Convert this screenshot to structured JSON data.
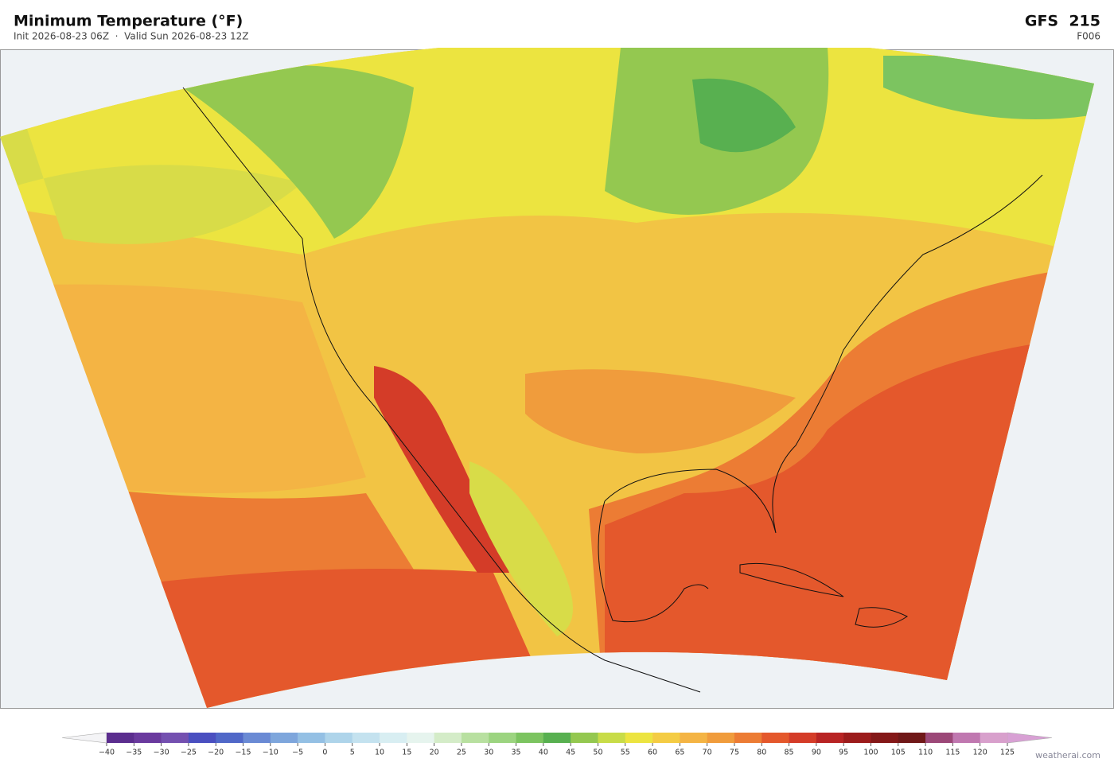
{
  "header": {
    "title": "Minimum Temperature  (°F)",
    "subtitle": "Init 2026-08-23 06Z  ·  Valid Sun 2026-08-23 12Z",
    "model": "GFS  215",
    "forecast_hour": "F006"
  },
  "colorbar": {
    "ticks": [
      {
        "value": -40,
        "label": "−40"
      },
      {
        "value": -35,
        "label": "−35"
      },
      {
        "value": -30,
        "label": "−30"
      },
      {
        "value": -25,
        "label": "−25"
      },
      {
        "value": -20,
        "label": "−20"
      },
      {
        "value": -15,
        "label": "−15"
      },
      {
        "value": -10,
        "label": "−10"
      },
      {
        "value": -5,
        "label": "−5"
      },
      0,
      5,
      10,
      15,
      20,
      25,
      30,
      35,
      40,
      45,
      50,
      55,
      60,
      65,
      70,
      75,
      80,
      85,
      90,
      95,
      100,
      105,
      110,
      115,
      120,
      125
    ],
    "colors": [
      "#5b2d8e",
      "#6a3a9e",
      "#7450b0",
      "#4a4fc0",
      "#5068c8",
      "#6a8ad4",
      "#7ea6dc",
      "#94c0e4",
      "#aed4ea",
      "#c4e2ef",
      "#d8eef2",
      "#e6f4ee",
      "#d4ecc8",
      "#b8e0a0",
      "#9cd480",
      "#7cc460",
      "#58b050",
      "#94c850",
      "#c8dc48",
      "#ece440",
      "#f4cc44",
      "#f4b444",
      "#f09c3c",
      "#ec7c34",
      "#e4582c",
      "#d43c28",
      "#b82424",
      "#9c1c1c",
      "#841818",
      "#701818",
      "#9c4878",
      "#c078b0",
      "#d8a0cc"
    ],
    "under_color": "#f4f4f6",
    "over_color": "#d8a0d4"
  },
  "watermark": "weatherai.com"
}
